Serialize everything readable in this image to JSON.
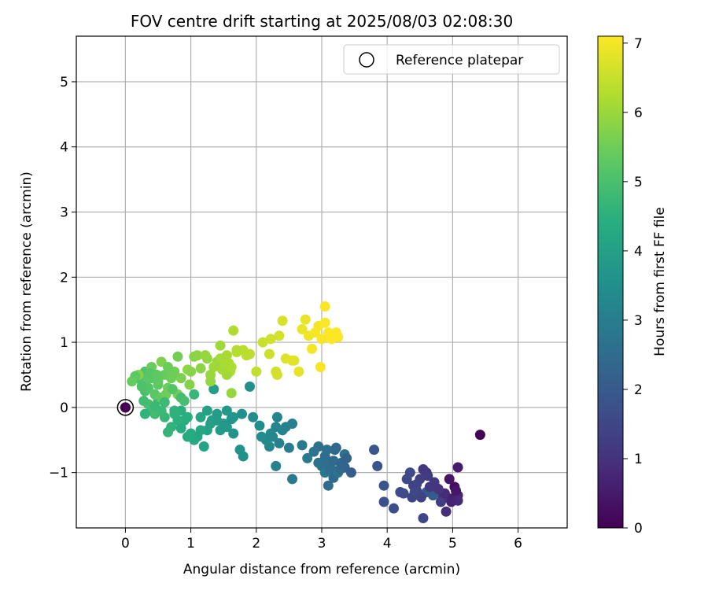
{
  "chart_data": {
    "type": "scatter",
    "title": "FOV centre drift starting at 2025/08/03 02:08:30",
    "xlabel": "Angular distance from reference (arcmin)",
    "ylabel": "Rotation from reference (arcmin)",
    "xlim": [
      -0.75,
      6.75
    ],
    "ylim": [
      -1.85,
      5.7
    ],
    "xticks": [
      0,
      1,
      2,
      3,
      4,
      5,
      6
    ],
    "yticks": [
      -1,
      0,
      1,
      2,
      3,
      4,
      5
    ],
    "grid": true,
    "legend": {
      "placement": "top-right",
      "entries": [
        {
          "label": "Reference platepar",
          "marker": "hollow-circle"
        }
      ]
    },
    "reference_point": {
      "x": 0,
      "y": 0
    },
    "colorbar": {
      "label": "Hours from first FF file",
      "colormap": "viridis",
      "range": [
        0,
        7.1
      ],
      "ticks": [
        0,
        1,
        2,
        3,
        4,
        5,
        6,
        7
      ]
    },
    "points": [
      [
        5.42,
        -0.42,
        0.0
      ],
      [
        0.0,
        0.0,
        0.02
      ],
      [
        5.03,
        -1.22,
        0.25
      ],
      [
        4.95,
        -1.1,
        0.4
      ],
      [
        5.08,
        -0.92,
        0.55
      ],
      [
        4.98,
        -1.4,
        0.6
      ],
      [
        5.08,
        -1.35,
        0.7
      ],
      [
        5.08,
        -1.43,
        0.8
      ],
      [
        4.9,
        -1.6,
        0.9
      ],
      [
        4.85,
        -1.4,
        0.95
      ],
      [
        4.7,
        -1.2,
        1.05
      ],
      [
        4.6,
        -1.0,
        1.1
      ],
      [
        4.55,
        -0.95,
        1.15
      ],
      [
        4.75,
        -1.3,
        1.2
      ],
      [
        4.82,
        -1.45,
        1.25
      ],
      [
        4.5,
        -1.1,
        1.3
      ],
      [
        4.45,
        -1.28,
        1.35
      ],
      [
        4.4,
        -1.2,
        1.4
      ],
      [
        4.38,
        -1.38,
        1.45
      ],
      [
        4.55,
        -1.7,
        1.5
      ],
      [
        4.3,
        -1.1,
        1.55
      ],
      [
        4.35,
        -1.0,
        1.6
      ],
      [
        4.2,
        -1.3,
        1.65
      ],
      [
        4.1,
        -1.55,
        1.7
      ],
      [
        3.95,
        -1.45,
        1.75
      ],
      [
        3.95,
        -1.2,
        1.8
      ],
      [
        3.85,
        -0.9,
        1.85
      ],
      [
        3.8,
        -0.65,
        1.9
      ],
      [
        4.6,
        -1.3,
        1.95
      ],
      [
        4.7,
        -1.35,
        2.0
      ],
      [
        3.45,
        -1.0,
        2.1
      ],
      [
        3.35,
        -0.92,
        2.2
      ],
      [
        3.3,
        -0.85,
        2.3
      ],
      [
        3.2,
        -0.65,
        2.35
      ],
      [
        3.18,
        -1.08,
        2.4
      ],
      [
        3.1,
        -1.2,
        2.45
      ],
      [
        3.05,
        -0.75,
        2.5
      ],
      [
        3.0,
        -0.9,
        2.55
      ],
      [
        2.95,
        -0.6,
        2.6
      ],
      [
        3.35,
        -0.72,
        2.65
      ],
      [
        3.25,
        -1.0,
        2.7
      ],
      [
        3.15,
        -0.95,
        2.75
      ],
      [
        3.05,
        -1.0,
        2.8
      ],
      [
        2.7,
        -0.58,
        2.85
      ],
      [
        2.55,
        -1.1,
        2.9
      ],
      [
        2.5,
        -0.62,
        2.95
      ],
      [
        2.55,
        -0.25,
        3.0
      ],
      [
        2.4,
        -0.35,
        3.05
      ],
      [
        2.35,
        -0.55,
        3.1
      ],
      [
        2.3,
        -0.9,
        3.15
      ],
      [
        2.3,
        -0.3,
        3.2
      ],
      [
        2.25,
        -0.45,
        3.25
      ],
      [
        2.2,
        -0.6,
        3.3
      ],
      [
        2.15,
        -0.5,
        3.35
      ],
      [
        2.05,
        -0.28,
        3.4
      ],
      [
        1.95,
        -0.15,
        3.45
      ],
      [
        1.9,
        0.32,
        3.5
      ],
      [
        1.8,
        -0.75,
        3.55
      ],
      [
        1.75,
        -0.65,
        3.6
      ],
      [
        1.65,
        -0.4,
        3.65
      ],
      [
        1.65,
        -0.15,
        3.7
      ],
      [
        1.55,
        -0.05,
        3.75
      ],
      [
        1.5,
        -0.25,
        3.8
      ],
      [
        1.45,
        -0.35,
        3.85
      ],
      [
        1.4,
        -0.1,
        3.9
      ],
      [
        1.35,
        0.28,
        3.95
      ],
      [
        1.3,
        -0.25,
        4.0
      ],
      [
        1.25,
        -0.35,
        4.05
      ],
      [
        1.2,
        -0.6,
        4.1
      ],
      [
        1.15,
        -0.15,
        4.15
      ],
      [
        1.1,
        -0.45,
        4.2
      ],
      [
        1.05,
        -0.5,
        4.25
      ],
      [
        1.0,
        -0.4,
        4.3
      ],
      [
        0.95,
        -0.45,
        4.35
      ],
      [
        0.9,
        -0.2,
        4.4
      ],
      [
        0.85,
        -0.05,
        4.45
      ],
      [
        0.8,
        -0.2,
        4.5
      ],
      [
        0.75,
        -0.1,
        4.55
      ],
      [
        0.7,
        -0.3,
        4.6
      ],
      [
        0.65,
        -0.38,
        4.65
      ],
      [
        0.6,
        -0.15,
        4.7
      ],
      [
        0.55,
        -0.05,
        4.75
      ],
      [
        0.5,
        0.12,
        4.8
      ],
      [
        0.45,
        -0.1,
        4.85
      ],
      [
        0.4,
        -0.05,
        4.9
      ],
      [
        0.35,
        0.05,
        4.95
      ],
      [
        0.3,
        0.25,
        5.0
      ],
      [
        0.25,
        0.4,
        5.05
      ],
      [
        0.3,
        0.55,
        5.1
      ],
      [
        0.35,
        0.3,
        5.15
      ],
      [
        0.4,
        0.45,
        5.2
      ],
      [
        0.45,
        0.2,
        5.25
      ],
      [
        0.5,
        0.35,
        5.3
      ],
      [
        0.55,
        0.15,
        5.35
      ],
      [
        0.6,
        0.5,
        5.4
      ],
      [
        0.65,
        0.3,
        5.45
      ],
      [
        0.7,
        0.45,
        5.5
      ],
      [
        0.75,
        0.55,
        5.55
      ],
      [
        0.8,
        0.2,
        5.6
      ],
      [
        0.85,
        0.45,
        5.65
      ],
      [
        0.55,
        0.7,
        5.7
      ],
      [
        0.2,
        0.5,
        5.75
      ],
      [
        1.05,
        0.78,
        5.8
      ],
      [
        1.15,
        0.6,
        5.85
      ],
      [
        1.25,
        0.75,
        5.9
      ],
      [
        1.3,
        0.4,
        5.95
      ],
      [
        1.4,
        0.7,
        6.0
      ],
      [
        1.45,
        0.95,
        6.05
      ],
      [
        1.5,
        0.6,
        6.1
      ],
      [
        1.55,
        0.8,
        6.15
      ],
      [
        1.6,
        0.55,
        6.2
      ],
      [
        1.65,
        1.18,
        6.25
      ],
      [
        1.7,
        0.85,
        6.3
      ],
      [
        1.8,
        0.88,
        6.35
      ],
      [
        1.9,
        0.82,
        6.4
      ],
      [
        2.0,
        0.55,
        6.45
      ],
      [
        2.1,
        1.0,
        6.5
      ],
      [
        2.2,
        0.82,
        6.55
      ],
      [
        2.3,
        0.55,
        6.6
      ],
      [
        2.35,
        1.1,
        6.65
      ],
      [
        2.4,
        1.33,
        6.7
      ],
      [
        2.45,
        0.75,
        6.75
      ],
      [
        2.55,
        0.72,
        6.8
      ],
      [
        2.65,
        0.55,
        6.85
      ],
      [
        2.7,
        1.2,
        6.9
      ],
      [
        2.8,
        1.1,
        6.95
      ],
      [
        2.85,
        0.9,
        7.0
      ],
      [
        2.9,
        1.15,
        7.02
      ],
      [
        2.98,
        0.62,
        7.04
      ],
      [
        3.05,
        1.55,
        7.06
      ],
      [
        3.1,
        1.15,
        7.08
      ],
      [
        3.15,
        1.05,
        7.1
      ],
      [
        3.2,
        1.12,
        7.1
      ],
      [
        3.25,
        1.08,
        7.1
      ],
      [
        1.62,
        0.22,
        5.95
      ],
      [
        1.55,
        0.5,
        6.05
      ],
      [
        0.95,
        0.58,
        5.9
      ],
      [
        0.62,
        0.2,
        5.5
      ],
      [
        1.05,
        0.2,
        4.7
      ],
      [
        0.85,
        0.15,
        4.95
      ],
      [
        0.8,
        0.78,
        5.55
      ],
      [
        0.15,
        0.48,
        5.3
      ],
      [
        0.1,
        0.4,
        5.4
      ],
      [
        0.28,
        0.1,
        4.9
      ],
      [
        0.3,
        -0.1,
        4.6
      ],
      [
        0.4,
        0.62,
        5.45
      ],
      [
        0.65,
        0.62,
        5.45
      ],
      [
        0.72,
        0.5,
        5.5
      ],
      [
        1.1,
        0.8,
        5.85
      ],
      [
        1.22,
        0.8,
        5.95
      ],
      [
        1.35,
        0.62,
        6.05
      ],
      [
        1.45,
        0.75,
        6.1
      ],
      [
        1.58,
        0.68,
        6.2
      ],
      [
        1.7,
        0.88,
        6.3
      ],
      [
        1.85,
        0.8,
        6.35
      ],
      [
        2.22,
        1.05,
        6.6
      ],
      [
        2.32,
        0.5,
        6.62
      ],
      [
        2.58,
        0.72,
        6.8
      ],
      [
        2.75,
        1.35,
        6.88
      ],
      [
        2.95,
        1.25,
        7.0
      ],
      [
        3.0,
        1.05,
        7.05
      ],
      [
        3.05,
        1.3,
        7.08
      ],
      [
        3.22,
        1.15,
        7.1
      ],
      [
        1.0,
        0.55,
        5.8
      ],
      [
        0.5,
        0.4,
        5.35
      ],
      [
        0.35,
        0.45,
        5.25
      ],
      [
        0.45,
        0.02,
        4.75
      ],
      [
        0.6,
        0.08,
        4.8
      ],
      [
        0.75,
        -0.05,
        4.55
      ],
      [
        0.95,
        -0.15,
        4.45
      ],
      [
        0.85,
        -0.32,
        4.4
      ],
      [
        1.15,
        -0.35,
        4.2
      ],
      [
        1.25,
        -0.05,
        4.05
      ],
      [
        1.32,
        -0.2,
        4.0
      ],
      [
        1.4,
        -0.2,
        3.9
      ],
      [
        1.55,
        -0.3,
        3.8
      ],
      [
        1.62,
        -0.18,
        3.7
      ],
      [
        1.78,
        -0.1,
        3.55
      ],
      [
        2.08,
        -0.45,
        3.42
      ],
      [
        2.22,
        -0.4,
        3.3
      ],
      [
        2.32,
        -0.15,
        3.2
      ],
      [
        2.45,
        -0.3,
        3.1
      ],
      [
        2.78,
        -0.78,
        2.85
      ],
      [
        2.88,
        -0.68,
        2.75
      ],
      [
        2.95,
        -0.85,
        2.65
      ],
      [
        3.05,
        -0.85,
        2.55
      ],
      [
        3.12,
        -0.95,
        2.5
      ],
      [
        3.18,
        -0.82,
        2.45
      ],
      [
        3.28,
        -0.95,
        2.4
      ],
      [
        3.08,
        -0.65,
        2.55
      ],
      [
        3.22,
        -0.62,
        2.38
      ],
      [
        4.25,
        -1.32,
        1.62
      ],
      [
        4.45,
        -1.18,
        1.42
      ],
      [
        4.62,
        -1.05,
        1.22
      ],
      [
        4.72,
        -1.15,
        1.1
      ],
      [
        4.88,
        -1.32,
        0.85
      ],
      [
        4.98,
        -1.45,
        0.7
      ],
      [
        5.05,
        -1.28,
        0.45
      ],
      [
        4.65,
        -1.22,
        1.15
      ],
      [
        4.78,
        -1.25,
        1.05
      ],
      [
        4.52,
        -1.38,
        1.4
      ],
      [
        4.42,
        -1.3,
        1.5
      ],
      [
        3.3,
        -0.88,
        2.3
      ],
      [
        3.38,
        -0.78,
        2.2
      ],
      [
        1.3,
        0.5,
        6.0
      ],
      [
        1.62,
        0.62,
        6.22
      ],
      [
        1.48,
        0.58,
        6.12
      ],
      [
        1.52,
        0.68,
        6.18
      ],
      [
        0.98,
        0.35,
        5.75
      ],
      [
        0.25,
        0.32,
        5.05
      ],
      [
        0.38,
        0.52,
        5.2
      ],
      [
        0.72,
        0.28,
        5.15
      ],
      [
        0.48,
        0.5,
        5.3
      ],
      [
        0.9,
        0.1,
        4.95
      ]
    ]
  }
}
